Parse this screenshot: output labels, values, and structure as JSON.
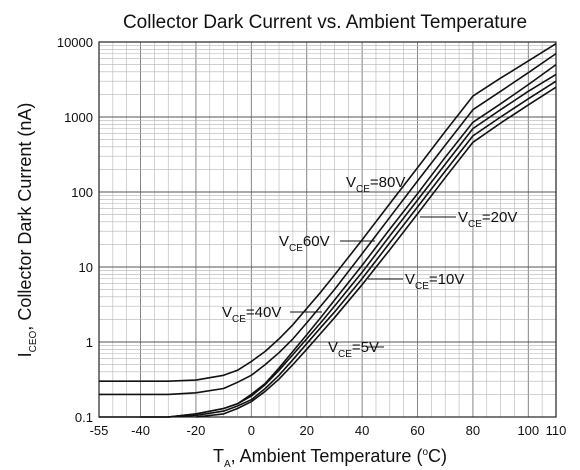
{
  "chart_data": {
    "type": "line",
    "title": "Collector Dark Current vs. Ambient Temperature",
    "xlabel": {
      "main": "T",
      "sub": "A",
      "rest": ", Ambient Temperature (",
      "sup": "o",
      "unit": "C)"
    },
    "ylabel": {
      "main": "I",
      "sub": "CEO",
      "rest": ", Collector Dark Current (nA)"
    },
    "x_scale": "linear",
    "y_scale": "log",
    "xlim": [
      -55,
      110
    ],
    "ylim": [
      0.1,
      10000
    ],
    "grid": true,
    "x_ticks": [
      -55,
      -40,
      -20,
      0,
      20,
      40,
      60,
      80,
      100,
      110
    ],
    "x_tick_labels": [
      "-55",
      "-40",
      "-20",
      "0",
      "20",
      "40",
      "60",
      "80",
      "100",
      "110"
    ],
    "y_ticks": [
      0.1,
      1,
      10,
      100,
      1000,
      10000
    ],
    "y_tick_labels": [
      "0.1",
      "1",
      "10",
      "100",
      "1000",
      "10000"
    ],
    "series": [
      {
        "name": "80V",
        "x": [
          -55,
          -40,
          -30,
          -20,
          -10,
          -5,
          0,
          5,
          10,
          15,
          20,
          25,
          30,
          40,
          50,
          60,
          70,
          80,
          90,
          100,
          110
        ],
        "y": [
          0.3,
          0.3,
          0.3,
          0.31,
          0.36,
          0.42,
          0.55,
          0.75,
          1.1,
          1.7,
          2.8,
          4.6,
          7.8,
          23,
          70,
          210,
          640,
          1900,
          3300,
          5600,
          9500
        ]
      },
      {
        "name": "60V",
        "x": [
          -55,
          -40,
          -30,
          -20,
          -10,
          -5,
          0,
          5,
          10,
          15,
          20,
          25,
          30,
          40,
          50,
          60,
          70,
          80,
          90,
          100,
          110
        ],
        "y": [
          0.2,
          0.2,
          0.2,
          0.21,
          0.24,
          0.29,
          0.36,
          0.5,
          0.72,
          1.1,
          1.8,
          3,
          5,
          15,
          46,
          140,
          420,
          1250,
          2200,
          3900,
          7000
        ]
      },
      {
        "name": "40V",
        "x": [
          -55,
          -40,
          -30,
          -20,
          -10,
          -5,
          0,
          5,
          10,
          15,
          20,
          25,
          30,
          40,
          50,
          60,
          70,
          80,
          90,
          100,
          110
        ],
        "y": [
          0.1,
          0.1,
          0.1,
          0.11,
          0.13,
          0.15,
          0.2,
          0.28,
          0.45,
          0.75,
          1.25,
          2.1,
          3.6,
          10.5,
          32,
          95,
          290,
          850,
          1500,
          2700,
          5000
        ]
      },
      {
        "name": "20V",
        "x": [
          -40,
          -30,
          -20,
          -10,
          -5,
          0,
          5,
          10,
          15,
          20,
          25,
          30,
          40,
          50,
          60,
          70,
          80,
          90,
          100,
          110
        ],
        "y": [
          0.1,
          0.1,
          0.11,
          0.13,
          0.15,
          0.19,
          0.27,
          0.42,
          0.68,
          1.1,
          1.8,
          3,
          8.5,
          26,
          78,
          235,
          700,
          1250,
          2200,
          3700
        ]
      },
      {
        "name": "10V",
        "x": [
          -30,
          -20,
          -10,
          -5,
          0,
          5,
          10,
          15,
          20,
          25,
          30,
          40,
          50,
          60,
          70,
          80,
          90,
          100,
          110
        ],
        "y": [
          0.1,
          0.105,
          0.12,
          0.14,
          0.17,
          0.24,
          0.36,
          0.58,
          0.95,
          1.55,
          2.5,
          7,
          21,
          63,
          190,
          560,
          1000,
          1750,
          3000
        ]
      },
      {
        "name": "5V",
        "x": [
          -20,
          -10,
          -5,
          0,
          5,
          10,
          15,
          20,
          25,
          30,
          40,
          50,
          60,
          70,
          80,
          90,
          100,
          110
        ],
        "y": [
          0.1,
          0.11,
          0.13,
          0.16,
          0.22,
          0.32,
          0.5,
          0.8,
          1.3,
          2.1,
          5.8,
          17,
          51,
          155,
          460,
          830,
          1450,
          2500
        ]
      }
    ],
    "annotations": [
      {
        "main": "V",
        "sub": "CE",
        "rest": "=80V"
      },
      {
        "main": "V",
        "sub": "CE",
        "rest": "60V"
      },
      {
        "main": "V",
        "sub": "CE",
        "rest": "=40V"
      },
      {
        "main": "V",
        "sub": "CE",
        "rest": "=20V"
      },
      {
        "main": "V",
        "sub": "CE",
        "rest": "=10V"
      },
      {
        "main": "V",
        "sub": "CE",
        "rest": "=5V"
      }
    ]
  }
}
